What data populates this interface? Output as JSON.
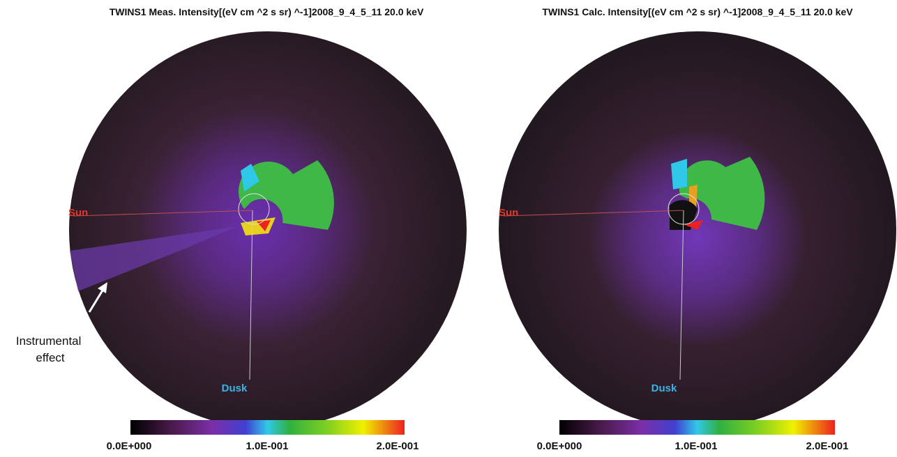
{
  "panels": [
    {
      "title": "TWINS1 Meas. Intensity[(eV cm ^2 s sr) ^-1]2008_9_4_5_11 20.0 keV",
      "sun_label": "Sun",
      "dusk_label": "Dusk",
      "colorbar_labels": [
        "0.0E+000",
        "1.0E-001",
        "2.0E-001"
      ]
    },
    {
      "title": "TWINS1 Calc. Intensity[(eV cm ^2 s sr) ^-1]2008_9_4_5_11 20.0 keV",
      "sun_label": "Sun",
      "dusk_label": "Dusk",
      "colorbar_labels": [
        "0.0E+000",
        "1.0E-001",
        "2.0E-001"
      ]
    }
  ],
  "annotation": {
    "lines": [
      "Instrumental",
      "effect"
    ]
  }
}
